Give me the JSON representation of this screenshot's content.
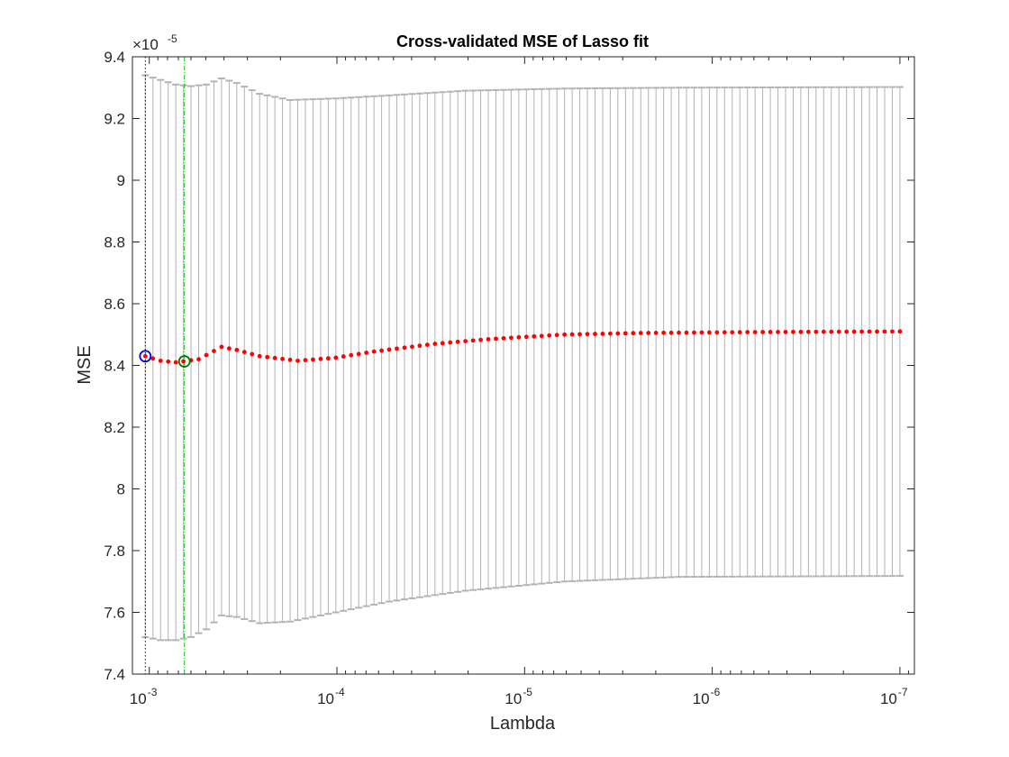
{
  "chart_data": {
    "type": "scatter",
    "title": "Cross-validated MSE of Lasso fit",
    "xlabel": "Lambda",
    "ylabel": "MSE",
    "x_scale": "log",
    "x_direction": "reversed",
    "xlim": [
      0.00123,
      8.37e-08
    ],
    "ylim": [
      7.4e-05,
      9.4e-05
    ],
    "y_exponent_label": "×10",
    "y_exponent_power": "-5",
    "x_ticks": [
      {
        "value": 0.001,
        "base": "10",
        "power": "-3"
      },
      {
        "value": 0.0001,
        "base": "10",
        "power": "-4"
      },
      {
        "value": 1e-05,
        "base": "10",
        "power": "-5"
      },
      {
        "value": 1e-06,
        "base": "10",
        "power": "-6"
      },
      {
        "value": 1e-07,
        "base": "10",
        "power": "-7"
      }
    ],
    "y_ticks": [
      {
        "value": 7.4,
        "label": "7.4"
      },
      {
        "value": 7.6,
        "label": "7.6"
      },
      {
        "value": 7.8,
        "label": "7.8"
      },
      {
        "value": 8.0,
        "label": "8"
      },
      {
        "value": 8.2,
        "label": "8.2"
      },
      {
        "value": 8.4,
        "label": "8.4"
      },
      {
        "value": 8.6,
        "label": "8.6"
      },
      {
        "value": 8.8,
        "label": "8.8"
      },
      {
        "value": 9.0,
        "label": "9"
      },
      {
        "value": 9.2,
        "label": "9.2"
      },
      {
        "value": 9.4,
        "label": "9.4"
      }
    ],
    "lambda_range": [
      0.00105,
      1e-07
    ],
    "n_points": 100,
    "mse_curve_knots": [
      {
        "idx": 0,
        "mse": 8.43
      },
      {
        "idx": 2,
        "mse": 8.415
      },
      {
        "idx": 4,
        "mse": 8.41
      },
      {
        "idx": 7,
        "mse": 8.42
      },
      {
        "idx": 10,
        "mse": 8.46
      },
      {
        "idx": 12,
        "mse": 8.45
      },
      {
        "idx": 15,
        "mse": 8.43
      },
      {
        "idx": 20,
        "mse": 8.415
      },
      {
        "idx": 25,
        "mse": 8.425
      },
      {
        "idx": 30,
        "mse": 8.445
      },
      {
        "idx": 38,
        "mse": 8.47
      },
      {
        "idx": 45,
        "mse": 8.485
      },
      {
        "idx": 55,
        "mse": 8.5
      },
      {
        "idx": 65,
        "mse": 8.505
      },
      {
        "idx": 80,
        "mse": 8.508
      },
      {
        "idx": 99,
        "mse": 8.51
      }
    ],
    "upper_bound_knots": [
      {
        "idx": 0,
        "val": 9.34
      },
      {
        "idx": 2,
        "val": 9.325
      },
      {
        "idx": 4,
        "val": 9.31
      },
      {
        "idx": 6,
        "val": 9.305
      },
      {
        "idx": 8,
        "val": 9.31
      },
      {
        "idx": 10,
        "val": 9.33
      },
      {
        "idx": 12,
        "val": 9.315
      },
      {
        "idx": 15,
        "val": 9.28
      },
      {
        "idx": 19,
        "val": 9.26
      },
      {
        "idx": 25,
        "val": 9.265
      },
      {
        "idx": 32,
        "val": 9.275
      },
      {
        "idx": 42,
        "val": 9.29
      },
      {
        "idx": 55,
        "val": 9.297
      },
      {
        "idx": 70,
        "val": 9.3
      },
      {
        "idx": 99,
        "val": 9.302
      }
    ],
    "lower_bound_knots": [
      {
        "idx": 0,
        "val": 7.52
      },
      {
        "idx": 2,
        "val": 7.51
      },
      {
        "idx": 4,
        "val": 7.51
      },
      {
        "idx": 6,
        "val": 7.52
      },
      {
        "idx": 8,
        "val": 7.545
      },
      {
        "idx": 10,
        "val": 7.59
      },
      {
        "idx": 12,
        "val": 7.585
      },
      {
        "idx": 15,
        "val": 7.565
      },
      {
        "idx": 19,
        "val": 7.57
      },
      {
        "idx": 25,
        "val": 7.6
      },
      {
        "idx": 32,
        "val": 7.635
      },
      {
        "idx": 42,
        "val": 7.67
      },
      {
        "idx": 55,
        "val": 7.7
      },
      {
        "idx": 70,
        "val": 7.715
      },
      {
        "idx": 99,
        "val": 7.718
      }
    ],
    "lambda_min_se": {
      "lambda": 0.00105,
      "mse": 8.43
    },
    "lambda_min_mse": {
      "lambda": 0.00065,
      "mse": 8.413
    },
    "colors": {
      "mse_points": "#ff0000",
      "error_bars": "#b3b3b3",
      "min_se_marker": "#0000ff",
      "min_mse_marker": "#007a00",
      "min_se_line": "#00008b",
      "min_mse_line": "#00cc00",
      "axes": "#262626"
    },
    "grid": false,
    "legend": "none"
  }
}
